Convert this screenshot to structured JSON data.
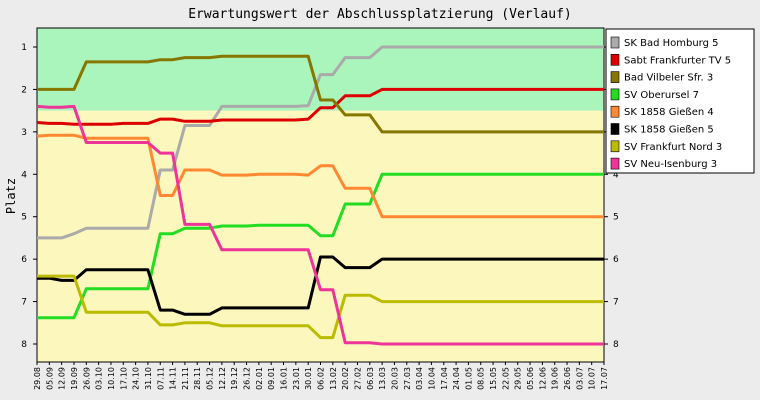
{
  "chart_data": {
    "type": "line",
    "title": "Erwartungswert der Abschlussplatzierung (Verlauf)",
    "ylabel": "Platz",
    "ylim": [
      0.5,
      8.5
    ],
    "y_inverted": true,
    "yticks": [
      1,
      2,
      3,
      4,
      5,
      6,
      7,
      8
    ],
    "background_bands": [
      {
        "from": 0.5,
        "to": 2.5,
        "color": "#aaf5bb"
      },
      {
        "from": 2.5,
        "to": 8.5,
        "color": "#fbf7bd"
      }
    ],
    "legend_position": "right",
    "categories": [
      "29.08",
      "05.09",
      "12.09",
      "19.09",
      "26.09",
      "03.10",
      "10.10",
      "17.10",
      "24.10",
      "31.10",
      "07.11",
      "14.11",
      "21.11",
      "28.11",
      "05.12",
      "12.12",
      "19.12",
      "26.12",
      "02.01",
      "09.01",
      "16.01",
      "23.01",
      "30.01",
      "06.02",
      "13.02",
      "20.02",
      "27.02",
      "06.03",
      "13.03",
      "20.03",
      "27.03",
      "03.04",
      "10.04",
      "17.04",
      "24.04",
      "01.05",
      "08.05",
      "15.05",
      "22.05",
      "29.05",
      "05.06",
      "12.06",
      "19.06",
      "26.06",
      "03.07",
      "10.07",
      "17.07"
    ],
    "series": [
      {
        "name": "SK Bad Homburg 5",
        "color": "#aaaaaa",
        "values": [
          5.5,
          5.5,
          5.5,
          5.4,
          5.27,
          5.27,
          5.27,
          5.27,
          5.27,
          5.27,
          3.9,
          3.9,
          2.85,
          2.85,
          2.85,
          2.4,
          2.4,
          2.4,
          2.4,
          2.4,
          2.4,
          2.4,
          2.38,
          1.65,
          1.65,
          1.25,
          1.25,
          1.25,
          1.0,
          1.0,
          1.0,
          1.0,
          1.0,
          1.0,
          1.0,
          1.0,
          1.0,
          1.0,
          1.0,
          1.0,
          1.0,
          1.0,
          1.0,
          1.0,
          1.0,
          1.0,
          1.0
        ]
      },
      {
        "name": "Sabt Frankfurter TV 5",
        "color": "#dd0000",
        "values": [
          2.78,
          2.8,
          2.8,
          2.82,
          2.82,
          2.82,
          2.82,
          2.8,
          2.8,
          2.8,
          2.7,
          2.7,
          2.75,
          2.75,
          2.75,
          2.72,
          2.72,
          2.72,
          2.72,
          2.72,
          2.72,
          2.72,
          2.7,
          2.43,
          2.43,
          2.15,
          2.15,
          2.15,
          2.0,
          2.0,
          2.0,
          2.0,
          2.0,
          2.0,
          2.0,
          2.0,
          2.0,
          2.0,
          2.0,
          2.0,
          2.0,
          2.0,
          2.0,
          2.0,
          2.0,
          2.0,
          2.0
        ]
      },
      {
        "name": "Bad Vilbeler Sfr. 3",
        "color": "#857700",
        "values": [
          2.0,
          2.0,
          2.0,
          2.0,
          1.35,
          1.35,
          1.35,
          1.35,
          1.35,
          1.35,
          1.3,
          1.3,
          1.25,
          1.25,
          1.25,
          1.22,
          1.22,
          1.22,
          1.22,
          1.22,
          1.22,
          1.22,
          1.22,
          2.25,
          2.25,
          2.6,
          2.6,
          2.6,
          3.0,
          3.0,
          3.0,
          3.0,
          3.0,
          3.0,
          3.0,
          3.0,
          3.0,
          3.0,
          3.0,
          3.0,
          3.0,
          3.0,
          3.0,
          3.0,
          3.0,
          3.0,
          3.0
        ]
      },
      {
        "name": "SV Oberursel 7",
        "color": "#22dd22",
        "values": [
          7.38,
          7.38,
          7.38,
          7.38,
          6.7,
          6.7,
          6.7,
          6.7,
          6.7,
          6.7,
          5.4,
          5.4,
          5.27,
          5.27,
          5.27,
          5.22,
          5.22,
          5.22,
          5.2,
          5.2,
          5.2,
          5.2,
          5.2,
          5.45,
          5.45,
          4.7,
          4.7,
          4.7,
          4.0,
          4.0,
          4.0,
          4.0,
          4.0,
          4.0,
          4.0,
          4.0,
          4.0,
          4.0,
          4.0,
          4.0,
          4.0,
          4.0,
          4.0,
          4.0,
          4.0,
          4.0,
          4.0
        ]
      },
      {
        "name": "SK 1858 Gießen 4",
        "color": "#ff8833",
        "values": [
          3.1,
          3.08,
          3.08,
          3.08,
          3.15,
          3.15,
          3.15,
          3.15,
          3.15,
          3.15,
          4.5,
          4.5,
          3.9,
          3.9,
          3.9,
          4.02,
          4.02,
          4.02,
          4.0,
          4.0,
          4.0,
          4.0,
          4.02,
          3.8,
          3.8,
          4.33,
          4.33,
          4.33,
          5.0,
          5.0,
          5.0,
          5.0,
          5.0,
          5.0,
          5.0,
          5.0,
          5.0,
          5.0,
          5.0,
          5.0,
          5.0,
          5.0,
          5.0,
          5.0,
          5.0,
          5.0,
          5.0
        ]
      },
      {
        "name": "SK 1858 Gießen 5",
        "color": "#000000",
        "values": [
          6.45,
          6.45,
          6.5,
          6.5,
          6.25,
          6.25,
          6.25,
          6.25,
          6.25,
          6.25,
          7.2,
          7.2,
          7.3,
          7.3,
          7.3,
          7.15,
          7.15,
          7.15,
          7.15,
          7.15,
          7.15,
          7.15,
          7.15,
          5.95,
          5.95,
          6.2,
          6.2,
          6.2,
          6.0,
          6.0,
          6.0,
          6.0,
          6.0,
          6.0,
          6.0,
          6.0,
          6.0,
          6.0,
          6.0,
          6.0,
          6.0,
          6.0,
          6.0,
          6.0,
          6.0,
          6.0,
          6.0
        ]
      },
      {
        "name": "SV Frankfurt Nord 3",
        "color": "#bbbb00",
        "values": [
          6.4,
          6.4,
          6.4,
          6.4,
          7.25,
          7.25,
          7.25,
          7.25,
          7.25,
          7.25,
          7.55,
          7.55,
          7.5,
          7.5,
          7.5,
          7.57,
          7.57,
          7.57,
          7.57,
          7.57,
          7.57,
          7.57,
          7.57,
          7.85,
          7.85,
          6.85,
          6.85,
          6.85,
          7.0,
          7.0,
          7.0,
          7.0,
          7.0,
          7.0,
          7.0,
          7.0,
          7.0,
          7.0,
          7.0,
          7.0,
          7.0,
          7.0,
          7.0,
          7.0,
          7.0,
          7.0,
          7.0
        ]
      },
      {
        "name": "SV Neu-Isenburg 3",
        "color": "#ee3399",
        "values": [
          2.4,
          2.42,
          2.42,
          2.4,
          3.25,
          3.25,
          3.25,
          3.25,
          3.25,
          3.25,
          3.5,
          3.5,
          5.18,
          5.18,
          5.18,
          5.78,
          5.78,
          5.78,
          5.78,
          5.78,
          5.78,
          5.78,
          5.78,
          6.72,
          6.72,
          7.97,
          7.97,
          7.97,
          8.0,
          8.0,
          8.0,
          8.0,
          8.0,
          8.0,
          8.0,
          8.0,
          8.0,
          8.0,
          8.0,
          8.0,
          8.0,
          8.0,
          8.0,
          8.0,
          8.0,
          8.0,
          8.0
        ]
      }
    ]
  }
}
